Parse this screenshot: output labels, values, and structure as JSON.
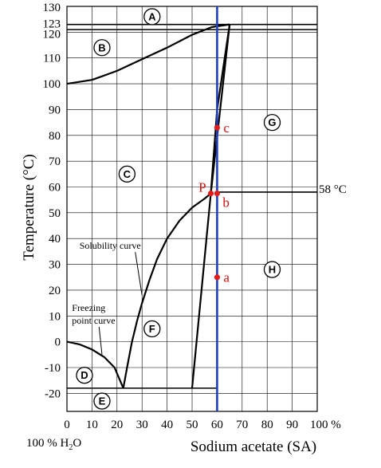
{
  "chart_data": {
    "type": "line",
    "title": "",
    "xlabel": "Sodium acetate (SA)",
    "xlabel_left": "100 % H",
    "xlabel_left_sub": "2",
    "xlabel_left_end": "O",
    "ylabel": "Temperature (°C)",
    "xlim": [
      0,
      100
    ],
    "ylim": [
      -27,
      130
    ],
    "grid": true,
    "x_ticks": [
      {
        "v": 0,
        "label": "0"
      },
      {
        "v": 10,
        "label": "10"
      },
      {
        "v": 20,
        "label": "20"
      },
      {
        "v": 30,
        "label": "30"
      },
      {
        "v": 40,
        "label": "40"
      },
      {
        "v": 50,
        "label": "50"
      },
      {
        "v": 60,
        "label": "60"
      },
      {
        "v": 70,
        "label": "70"
      },
      {
        "v": 80,
        "label": "80"
      },
      {
        "v": 90,
        "label": "90"
      },
      {
        "v": 100,
        "label": "100 %"
      }
    ],
    "y_ticks": [
      {
        "v": 130,
        "label": "130"
      },
      {
        "v": 123,
        "label": "123"
      },
      {
        "v": 120,
        "label": "120"
      },
      {
        "v": 110,
        "label": "110"
      },
      {
        "v": 100,
        "label": "100"
      },
      {
        "v": 90,
        "label": "90"
      },
      {
        "v": 80,
        "label": "80"
      },
      {
        "v": 70,
        "label": "70"
      },
      {
        "v": 60,
        "label": "60"
      },
      {
        "v": 50,
        "label": "50"
      },
      {
        "v": 40,
        "label": "40"
      },
      {
        "v": 30,
        "label": "30"
      },
      {
        "v": 20,
        "label": "20"
      },
      {
        "v": 10,
        "label": "10"
      },
      {
        "v": 0,
        "label": "0"
      },
      {
        "v": -10,
        "label": "-10"
      },
      {
        "v": -20,
        "label": "-20"
      }
    ],
    "curves": [
      {
        "name": "boiling-curve",
        "points": [
          [
            0,
            100
          ],
          [
            10,
            101.5
          ],
          [
            20,
            105
          ],
          [
            30,
            109.5
          ],
          [
            40,
            114
          ],
          [
            50,
            119
          ],
          [
            58,
            122
          ],
          [
            65,
            123
          ]
        ]
      },
      {
        "name": "solubility-curve",
        "points": [
          [
            22.5,
            -18
          ],
          [
            24,
            -10
          ],
          [
            26,
            0
          ],
          [
            28,
            8
          ],
          [
            30,
            15
          ],
          [
            33,
            24
          ],
          [
            36,
            32
          ],
          [
            40,
            40
          ],
          [
            45,
            47
          ],
          [
            50,
            52
          ],
          [
            55,
            55.5
          ],
          [
            57.5,
            57.5
          ]
        ]
      },
      {
        "name": "freezing-point-curve",
        "points": [
          [
            0,
            0
          ],
          [
            5,
            -1
          ],
          [
            10,
            -3
          ],
          [
            15,
            -6
          ],
          [
            19,
            -10
          ],
          [
            22.5,
            -18
          ]
        ]
      },
      {
        "name": "trihydrate-left-edge",
        "points": [
          [
            50,
            -18
          ],
          [
            57.5,
            57.5
          ],
          [
            65,
            123
          ]
        ]
      },
      {
        "name": "trihydrate-right-edge",
        "points": [
          [
            65,
            123
          ],
          [
            60,
            90
          ],
          [
            57.5,
            57.5
          ]
        ]
      }
    ],
    "horizontal_lines": [
      {
        "name": "line-123",
        "y": 123,
        "x0": 0,
        "x1": 100
      },
      {
        "name": "line-121",
        "y": 121,
        "x0": 0,
        "x1": 100
      },
      {
        "name": "line-58",
        "y": 58,
        "x0": 60,
        "x1": 100
      },
      {
        "name": "line-minus-18",
        "y": -18,
        "x0": 0,
        "x1": 60
      }
    ],
    "vertical_line": {
      "x": 60,
      "color": "#1f3fbf"
    },
    "points": [
      {
        "name": "c",
        "x": 60,
        "y": 83,
        "label": "c"
      },
      {
        "name": "p",
        "x": 57.5,
        "y": 57.5,
        "label": "P"
      },
      {
        "name": "b",
        "x": 60,
        "y": 57.5,
        "label": "b"
      },
      {
        "name": "a",
        "x": 60,
        "y": 25,
        "label": "a"
      }
    ],
    "point_color": "#e21b1b",
    "region_labels": [
      {
        "name": "A",
        "label": "A",
        "x": 34,
        "y": 126
      },
      {
        "name": "B",
        "label": "B",
        "x": 14,
        "y": 114
      },
      {
        "name": "C",
        "label": "C",
        "x": 24,
        "y": 65
      },
      {
        "name": "D",
        "label": "D",
        "x": 7,
        "y": -13
      },
      {
        "name": "E",
        "label": "E",
        "x": 14,
        "y": -23
      },
      {
        "name": "F",
        "label": "F",
        "x": 34,
        "y": 5
      },
      {
        "name": "G",
        "label": "G",
        "x": 82,
        "y": 85
      },
      {
        "name": "H",
        "label": "H",
        "x": 82,
        "y": 28
      }
    ],
    "annotations": [
      {
        "name": "solubility-label",
        "text": "Solubility curve",
        "x": 5,
        "y": 36,
        "arrow_to": [
          30,
          18
        ]
      },
      {
        "name": "freezing-label",
        "text": "Freezing",
        "x": 2,
        "y": 12,
        "arrow_to": null
      },
      {
        "name": "freezing-label-2",
        "text": "point curve",
        "x": 2,
        "y": 7,
        "arrow_to": [
          14,
          -5
        ]
      }
    ],
    "side_label": "58 °C"
  }
}
